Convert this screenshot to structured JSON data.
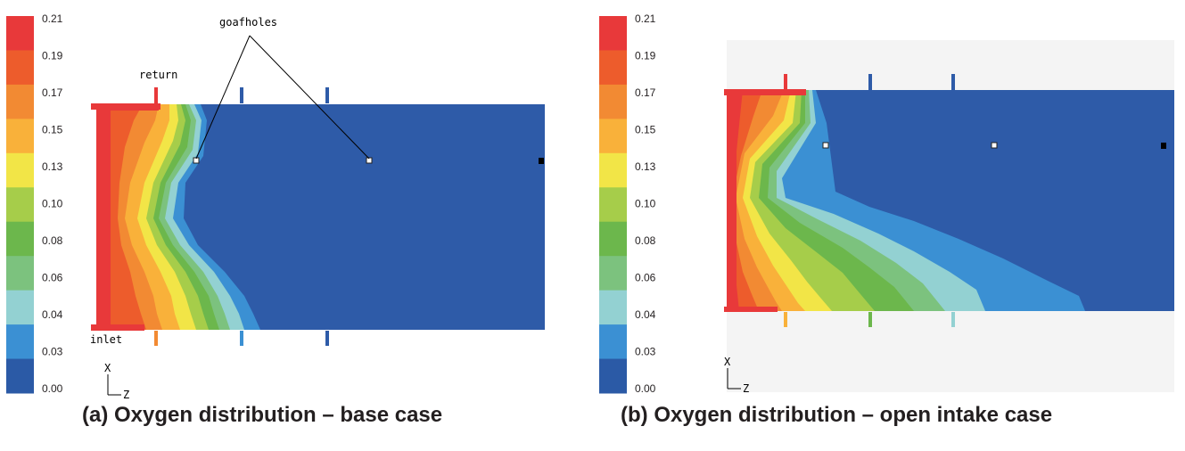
{
  "colors": {
    "scale": [
      "#2b5aa6",
      "#3b90d3",
      "#93d1d2",
      "#7cc27e",
      "#6cb74c",
      "#a6cd4a",
      "#f2e547",
      "#f9b13a",
      "#f28a33",
      "#ed5c2c",
      "#e8393a"
    ],
    "domain_blue": "#2e5ba8",
    "caption": "#231f20"
  },
  "legend": {
    "labels": [
      "0.21",
      "0.19",
      "0.17",
      "0.15",
      "0.13",
      "0.10",
      "0.08",
      "0.06",
      "0.04",
      "0.03",
      "0.00"
    ]
  },
  "panel_a": {
    "annotation_goafholes": "goafholes",
    "label_return": "return",
    "label_inlet": "inlet",
    "axis_x": "X",
    "axis_z": "Z",
    "caption": "(a) Oxygen distribution – base case"
  },
  "panel_b": {
    "axis_x": "X",
    "axis_z": "Z",
    "caption": "(b) Oxygen distribution – open intake case"
  }
}
